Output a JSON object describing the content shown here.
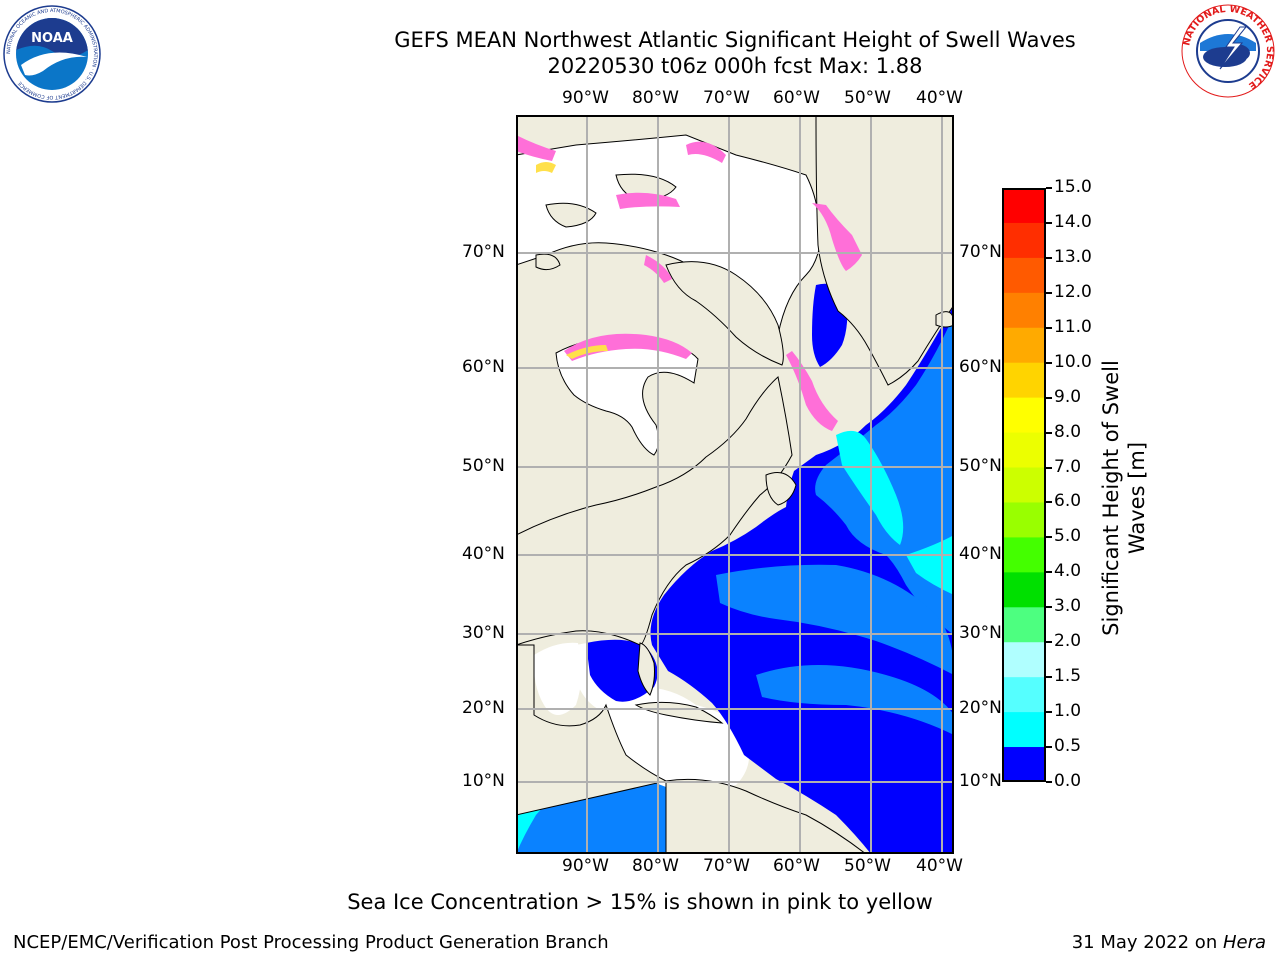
{
  "header": {
    "title_line1": "GEFS MEAN Northwest Atlantic Significant Height of Swell Waves",
    "title_line2": "20220530 t06z 000h fcst   Max: 1.88"
  },
  "logos": {
    "noaa_text": "NOAA",
    "noaa_ring_text": "NATIONAL OCEANIC AND ATMOSPHERIC ADMINISTRATION · U.S. DEPARTMENT OF COMMERCE",
    "nws_ring_text": "NATIONAL WEATHER SERVICE"
  },
  "map": {
    "lon_labels": [
      "90°W",
      "80°W",
      "70°W",
      "60°W",
      "50°W",
      "40°W"
    ],
    "lat_labels": [
      "70°N",
      "60°N",
      "50°N",
      "40°N",
      "30°N",
      "20°N",
      "10°N"
    ],
    "colors": {
      "land": "#efedde",
      "ocean_low": "#0000ff",
      "ocean_mid": "#0a82ff",
      "ocean_high": "#00ffff",
      "ice_pink": "#ff6fd8",
      "ice_yellow": "#ffe04a",
      "grid": "#b0b0b0"
    }
  },
  "colorbar": {
    "label_line1": "Significant Height of Swell",
    "label_line2": "Waves [m]",
    "ticks": [
      "15.0",
      "14.0",
      "13.0",
      "12.0",
      "11.0",
      "10.0",
      "9.0",
      "8.0",
      "7.0",
      "6.0",
      "5.0",
      "4.0",
      "3.0",
      "2.0",
      "1.5",
      "1.0",
      "0.5",
      "0.0"
    ],
    "colors": [
      "#ff0000",
      "#ff2e00",
      "#ff5a00",
      "#ff8000",
      "#ffaa00",
      "#ffd400",
      "#ffff00",
      "#ecff00",
      "#ccff00",
      "#99ff00",
      "#44ff00",
      "#00e000",
      "#4dff80",
      "#b0ffff",
      "#55ffff",
      "#00ffff",
      "#0a82ff",
      "#0000ff"
    ]
  },
  "footer": {
    "note": "Sea Ice Concentration > 15% is shown in pink to yellow",
    "credit": "NCEP/EMC/Verification Post Processing Product Generation Branch",
    "date": "31 May 2022 on ",
    "machine": "Hera"
  }
}
